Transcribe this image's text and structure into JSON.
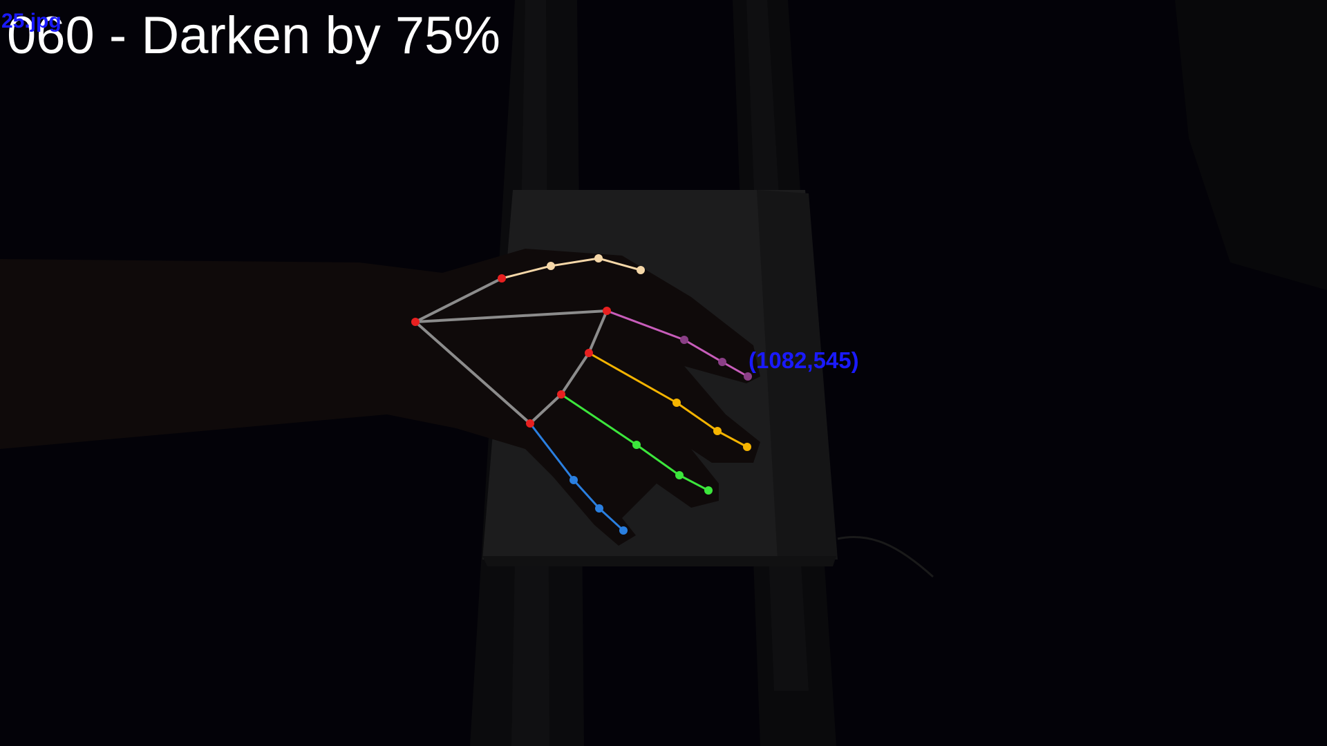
{
  "overlay": {
    "title": "060 - Darken by 75%",
    "file_label": "25.jpg",
    "coordinate_label": "(1082,545)"
  },
  "colors": {
    "background": "#030208",
    "title": "#ffffff",
    "label_blue": "#1a1aff",
    "palm_bones": "#8c8c8c",
    "thumb": "#f5d7a8",
    "index": "#c85dbb",
    "middle": "#f5b400",
    "ring": "#3ce63c",
    "pinky": "#2a7fe0",
    "base_joint": "#e82020"
  },
  "hand_skeleton": {
    "palm": "gray-bones",
    "fingers": [
      "thumb",
      "index",
      "middle",
      "ring",
      "pinky"
    ]
  }
}
